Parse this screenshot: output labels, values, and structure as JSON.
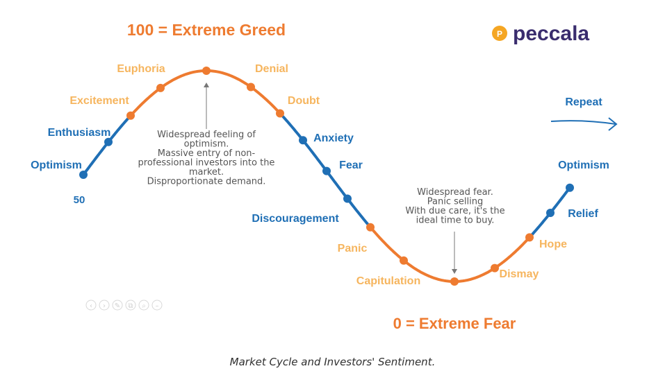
{
  "colors": {
    "greed_orange": "#ee7b30",
    "label_orange": "#f6b55e",
    "fear_blue": "#1f6fb5",
    "note_gray": "#555555",
    "arrow_gray": "#777777",
    "logo_purple": "#3a2d6e",
    "logo_circle": "#f5a623"
  },
  "header": {
    "greed_title": "100 = Extreme Greed",
    "fear_title": "0 = Extreme Fear"
  },
  "logo": {
    "text": "peccala"
  },
  "repeat": {
    "label": "Repeat"
  },
  "midpoint": {
    "label": "50"
  },
  "stages": [
    {
      "label": "Optimism",
      "phase": "blue"
    },
    {
      "label": "Enthusiasm",
      "phase": "blue"
    },
    {
      "label": "Excitement",
      "phase": "orange"
    },
    {
      "label": "Euphoria",
      "phase": "orange"
    },
    {
      "label": "Denial",
      "phase": "orange"
    },
    {
      "label": "Doubt",
      "phase": "orange"
    },
    {
      "label": "Anxiety",
      "phase": "blue"
    },
    {
      "label": "Fear",
      "phase": "blue"
    },
    {
      "label": "Discouragement",
      "phase": "blue"
    },
    {
      "label": "Panic",
      "phase": "orange"
    },
    {
      "label": "Capitulation",
      "phase": "orange"
    },
    {
      "label": "Dismay",
      "phase": "orange"
    },
    {
      "label": "Hope",
      "phase": "orange"
    },
    {
      "label": "Relief",
      "phase": "blue"
    },
    {
      "label": "Optimism",
      "phase": "blue"
    }
  ],
  "notes": {
    "top": [
      "Widespread feeling of",
      "optimism.",
      "Massive entry of non-",
      "professional investors into the",
      "market.",
      "Disproportionate demand."
    ],
    "bottom": [
      "Widespread fear.",
      "Panic selling",
      "With due care, it's the",
      "ideal time to buy."
    ]
  },
  "toolbar_icons": [
    "prev-icon",
    "next-icon",
    "edit-icon",
    "copy-icon",
    "zoom-icon",
    "minimize-icon"
  ],
  "caption": "Market Cycle and Investors' Sentiment."
}
